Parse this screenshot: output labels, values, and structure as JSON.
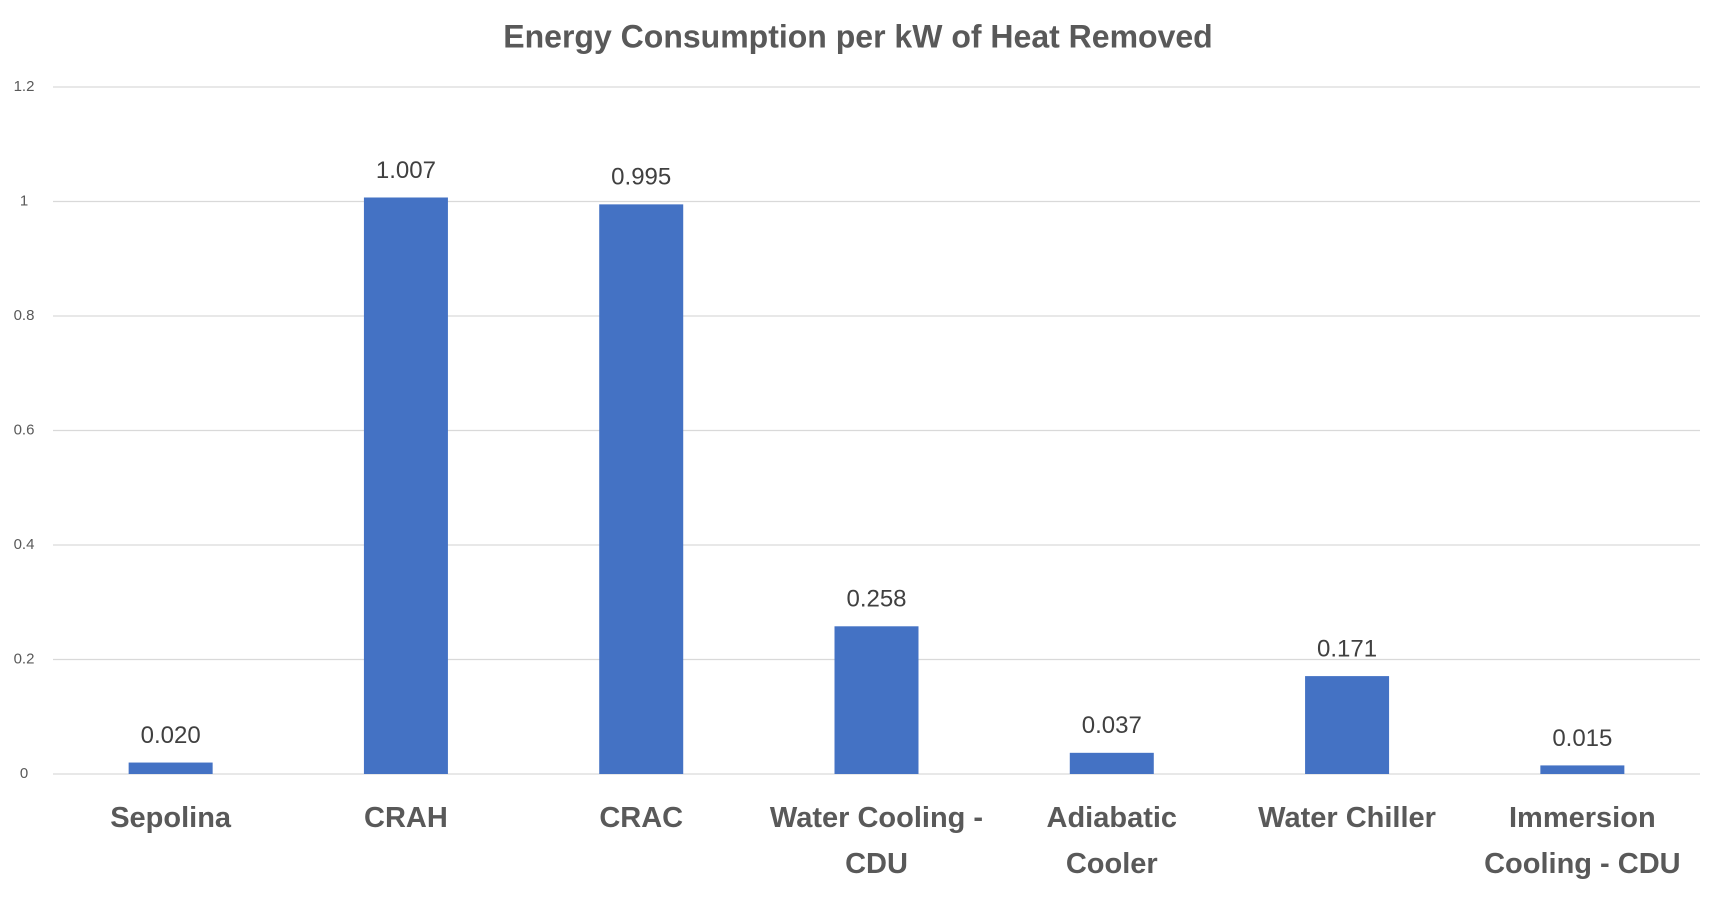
{
  "chart_data": {
    "type": "bar",
    "title": "Energy Consumption per kW of Heat Removed",
    "categories": [
      "Sepolina",
      "CRAH",
      "CRAC",
      "Water Cooling - CDU",
      "Adiabatic Cooler",
      "Water Chiller",
      "Immersion Cooling - CDU"
    ],
    "values": [
      0.02,
      1.007,
      0.995,
      0.258,
      0.037,
      0.171,
      0.015
    ],
    "value_labels": [
      "0.020",
      "1.007",
      "0.995",
      "0.258",
      "0.037",
      "0.171",
      "0.015"
    ],
    "color": "#4472c4",
    "ylim": [
      0,
      1.2
    ],
    "yticks": [
      0,
      0.2,
      0.4,
      0.6,
      0.8,
      1,
      1.2
    ],
    "grid": true
  }
}
